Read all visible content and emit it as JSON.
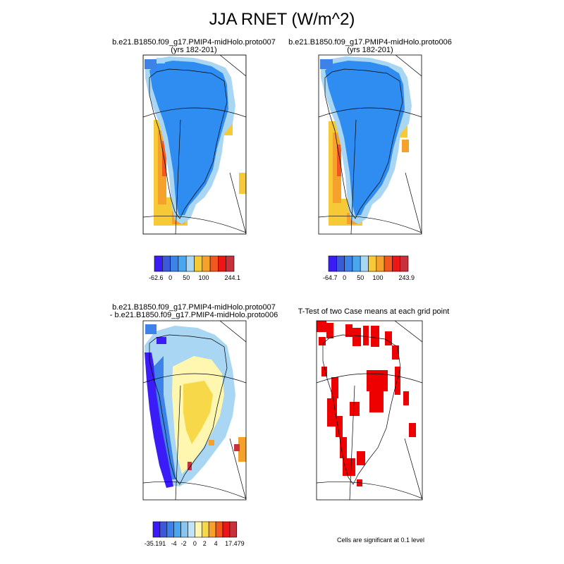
{
  "title": "JJA RNET (W/m^2)",
  "panels": [
    {
      "title_line1": "b.e21.B1850.f09_g17.PMIP4-midHolo.proto007",
      "title_line2": "(yrs 182-201)",
      "colorbar": {
        "colors": [
          "#3b1cf6",
          "#3a5ad8",
          "#3c82e8",
          "#4aa7ef",
          "#a9d6f3",
          "#f6c936",
          "#f6a12b",
          "#f2571e",
          "#ec1616",
          "#c8303b"
        ],
        "labels": [
          "-62.6",
          "0",
          "50",
          "100",
          "244.1"
        ]
      }
    },
    {
      "title_line1": "b.e21.B1850.f09_g17.PMIP4-midHolo.proto006",
      "title_line2": "(yrs 182-201)",
      "colorbar": {
        "colors": [
          "#3b1cf6",
          "#3a5ad8",
          "#3c82e8",
          "#4aa7ef",
          "#a9d6f3",
          "#f6c936",
          "#f6a12b",
          "#f2571e",
          "#ec1616",
          "#c8303b"
        ],
        "labels": [
          "-64.7",
          "0",
          "50",
          "100",
          "243.9"
        ]
      }
    },
    {
      "title_line1": "b.e21.B1850.f09_g17.PMIP4-midHolo.proto007",
      "title_line2": "- b.e21.B1850.f09_g17.PMIP4-midHolo.proto006",
      "colorbar": {
        "colors": [
          "#3b1cf6",
          "#3a5ad8",
          "#3c82e8",
          "#4aa7ef",
          "#87c6f1",
          "#bfe3f8",
          "#fff6b0",
          "#f6d848",
          "#f6a12b",
          "#f2571e",
          "#ec1616",
          "#c8303b"
        ],
        "labels": [
          "-35.191",
          "-4",
          "-2",
          "0",
          "2",
          "4",
          "17.479"
        ]
      }
    },
    {
      "title_line1": "T-Test of two Case means at each grid point",
      "footnote": "Cells are significant at 0.1 level"
    }
  ],
  "colors": {
    "ice_blue": "#2f8cf0",
    "light_blue": "#a9d6f3",
    "coast_yellow": "#f6c936",
    "coast_orange": "#f6a12b",
    "diff_blue": "#3c82e8",
    "diff_yellow": "#fff6b0",
    "signif_red": "#ee0000"
  }
}
